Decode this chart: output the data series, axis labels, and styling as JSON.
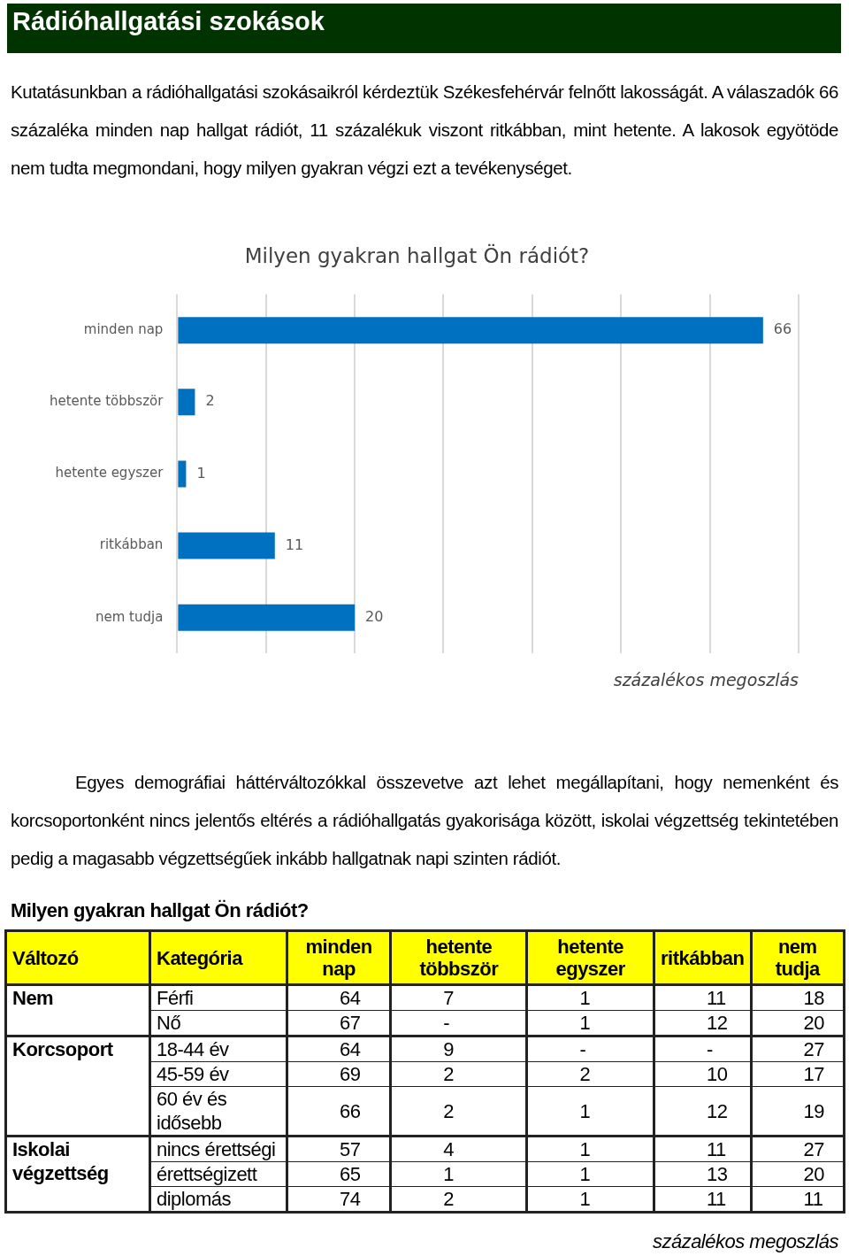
{
  "chart_data": [
    {
      "type": "other",
      "title": "Rádióhallgatási szokások",
      "annotations": [
        "Kutatásunkban a rádióhallgatási szokásaikról kérdeztük Székesfehérvár felnőtt lakosságát. A válaszadók 66 százaléka minden nap hallgat rádiót, 11 százalékuk viszont ritkábban, mint hetente. A lakosok egyötöde nem tudta megmondani, hogy milyen gyakran végzi ezt a tevékenységet."
      ]
    },
    {
      "type": "bar",
      "orientation": "horizontal",
      "title": "Milyen gyakran hallgat Ön rádiót?",
      "xlabel": "százalékos megoszlás",
      "categories": [
        "minden nap",
        "hetente többször",
        "hetente egyszer",
        "ritkábban",
        "nem tudja"
      ],
      "values": [
        66,
        2,
        1,
        11,
        20
      ],
      "color": "#0070c0",
      "xlim": [
        0,
        70
      ],
      "xticks": [
        {
          "value": 0,
          "label": null
        },
        {
          "value": 10,
          "label": null
        },
        {
          "value": 20,
          "label": null
        },
        {
          "value": 30,
          "label": null
        },
        {
          "value": 40,
          "label": null
        },
        {
          "value": 50,
          "label": null
        },
        {
          "value": 60,
          "label": null
        },
        {
          "value": 70,
          "label": null
        }
      ],
      "grid": "x",
      "tick_labels": "y",
      "data_labels": true
    },
    {
      "type": "heatmap",
      "subtitle": "Egyes demográfiai háttérváltozókkal összevetve azt lehet megállapítani, hogy nemenként és korcsoportonként nincs jelentős eltérés a rádióhallgatás gyakorisága között, iskolai végzettség tekintetében pedig a magasabb végzettségűek inkább hallgatnak napi szinten rádiót.",
      "title": "Milyen gyakran hallgat Ön rádiót?",
      "y2label": "Változó",
      "ylabel": "Kategória",
      "categories": [
        "minden nap",
        "hetente többször",
        "hetente egyszer",
        "ritkábban",
        "nem tudja"
      ],
      "y_categories": [
        "Férfi",
        "Nő",
        "18-44 év",
        "45-59 év",
        "60 év és idősebb",
        "nincs érettségi",
        "érettségizett",
        "diplomás"
      ],
      "y2_categories": [
        "Nem",
        null,
        "Korcsoport",
        null,
        null,
        "Iskolai végzettség",
        null,
        null
      ],
      "cells": [
        [
          64,
          7,
          1,
          11,
          18
        ],
        [
          67,
          null,
          1,
          12,
          20
        ],
        [
          64,
          9,
          null,
          null,
          27
        ],
        [
          69,
          2,
          2,
          10,
          17
        ],
        [
          66,
          2,
          1,
          12,
          19
        ],
        [
          57,
          4,
          1,
          11,
          27
        ],
        [
          65,
          1,
          1,
          13,
          20
        ],
        [
          74,
          2,
          1,
          11,
          11
        ]
      ],
      "cell_labels": [
        [
          "64",
          "7",
          "1",
          "11",
          "18"
        ],
        [
          "67",
          "-",
          "1",
          "12",
          "20"
        ],
        [
          "64",
          "9",
          "-",
          "-",
          "27"
        ],
        [
          "69",
          "2",
          "2",
          "10",
          "17"
        ],
        [
          "66",
          "2",
          "1",
          "12",
          "19"
        ],
        [
          "57",
          "4",
          "1",
          "11",
          "27"
        ],
        [
          "65",
          "1",
          "1",
          "13",
          "20"
        ],
        [
          "74",
          "2",
          "1",
          "11",
          "11"
        ]
      ],
      "annotations": [
        "százalékos megoszlás"
      ]
    }
  ]
}
